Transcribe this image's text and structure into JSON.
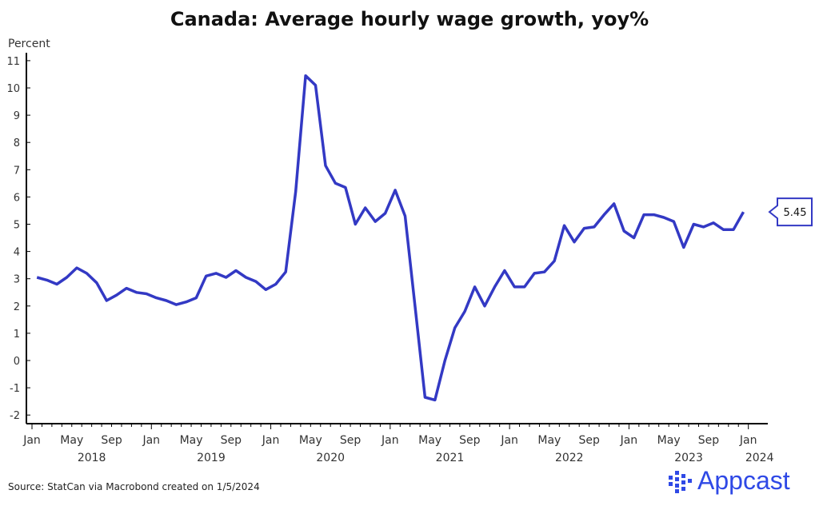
{
  "chart_data": {
    "type": "line",
    "title": "Canada: Average hourly wage growth, yoy%",
    "ylabel": "Percent",
    "xlabel": "",
    "ylim": [
      -2,
      11
    ],
    "yticks": [
      -2,
      -1,
      0,
      1,
      2,
      3,
      4,
      5,
      6,
      7,
      8,
      9,
      10,
      11
    ],
    "xtick_labels": [
      "Jan",
      "May",
      "Sep",
      "Jan",
      "May",
      "Sep",
      "Jan",
      "May",
      "Sep",
      "Jan",
      "May",
      "Sep",
      "Jan",
      "May",
      "Sep",
      "Jan",
      "May",
      "Sep",
      "Jan"
    ],
    "year_labels": [
      "2018",
      "2019",
      "2020",
      "2021",
      "2022",
      "2023",
      "2024"
    ],
    "start": "2018-01",
    "frequency": "monthly",
    "series": [
      {
        "name": "Average hourly wage growth",
        "color": "#3339c4",
        "values": [
          3.05,
          2.95,
          2.8,
          3.05,
          3.4,
          3.2,
          2.85,
          2.2,
          2.4,
          2.65,
          2.5,
          2.45,
          2.3,
          2.2,
          2.05,
          2.15,
          2.3,
          3.1,
          3.2,
          3.05,
          3.3,
          3.05,
          2.9,
          2.6,
          2.8,
          3.25,
          6.2,
          10.45,
          10.1,
          7.15,
          6.5,
          6.35,
          5.0,
          5.6,
          5.1,
          5.4,
          6.25,
          5.3,
          2.0,
          -1.35,
          -1.45,
          0.0,
          1.2,
          1.8,
          2.7,
          2.0,
          2.7,
          3.3,
          2.7,
          2.7,
          3.2,
          3.25,
          3.65,
          4.95,
          4.35,
          4.85,
          4.9,
          5.35,
          5.75,
          4.75,
          4.5,
          5.35,
          5.35,
          5.25,
          5.1,
          4.15,
          5.0,
          4.9,
          5.05,
          4.8,
          4.8,
          5.45
        ]
      }
    ],
    "last_value_label": "5.45",
    "grid": false
  },
  "source": "Source: StatCan via Macrobond created on 1/5/2024",
  "logo": "Appcast"
}
